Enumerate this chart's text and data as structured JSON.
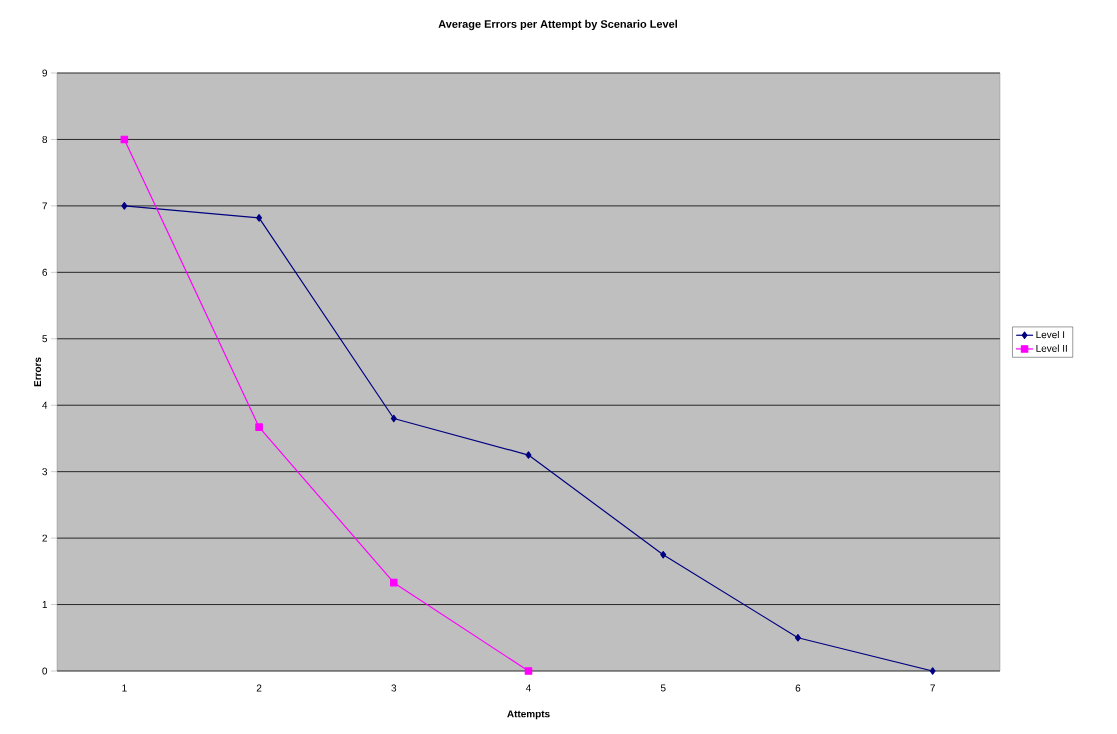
{
  "chart_data": {
    "type": "line",
    "title": "Average Errors per Attempt by Scenario Level",
    "xlabel": "Attempts",
    "ylabel": "Errors",
    "categories": [
      "1",
      "2",
      "3",
      "4",
      "5",
      "6",
      "7"
    ],
    "series": [
      {
        "name": "Level I",
        "color": "#000080",
        "marker": "diamond",
        "values": [
          7,
          6.82,
          3.8,
          3.25,
          1.75,
          0.5,
          0
        ]
      },
      {
        "name": "Level II",
        "color": "#ff00ff",
        "marker": "square",
        "values": [
          8,
          3.67,
          1.33,
          0,
          null,
          null,
          null
        ]
      }
    ],
    "ylim": [
      0,
      9
    ],
    "yticks": [
      0,
      1,
      2,
      3,
      4,
      5,
      6,
      7,
      8,
      9
    ],
    "grid": "y",
    "legend": "right",
    "line_style": "solid"
  }
}
